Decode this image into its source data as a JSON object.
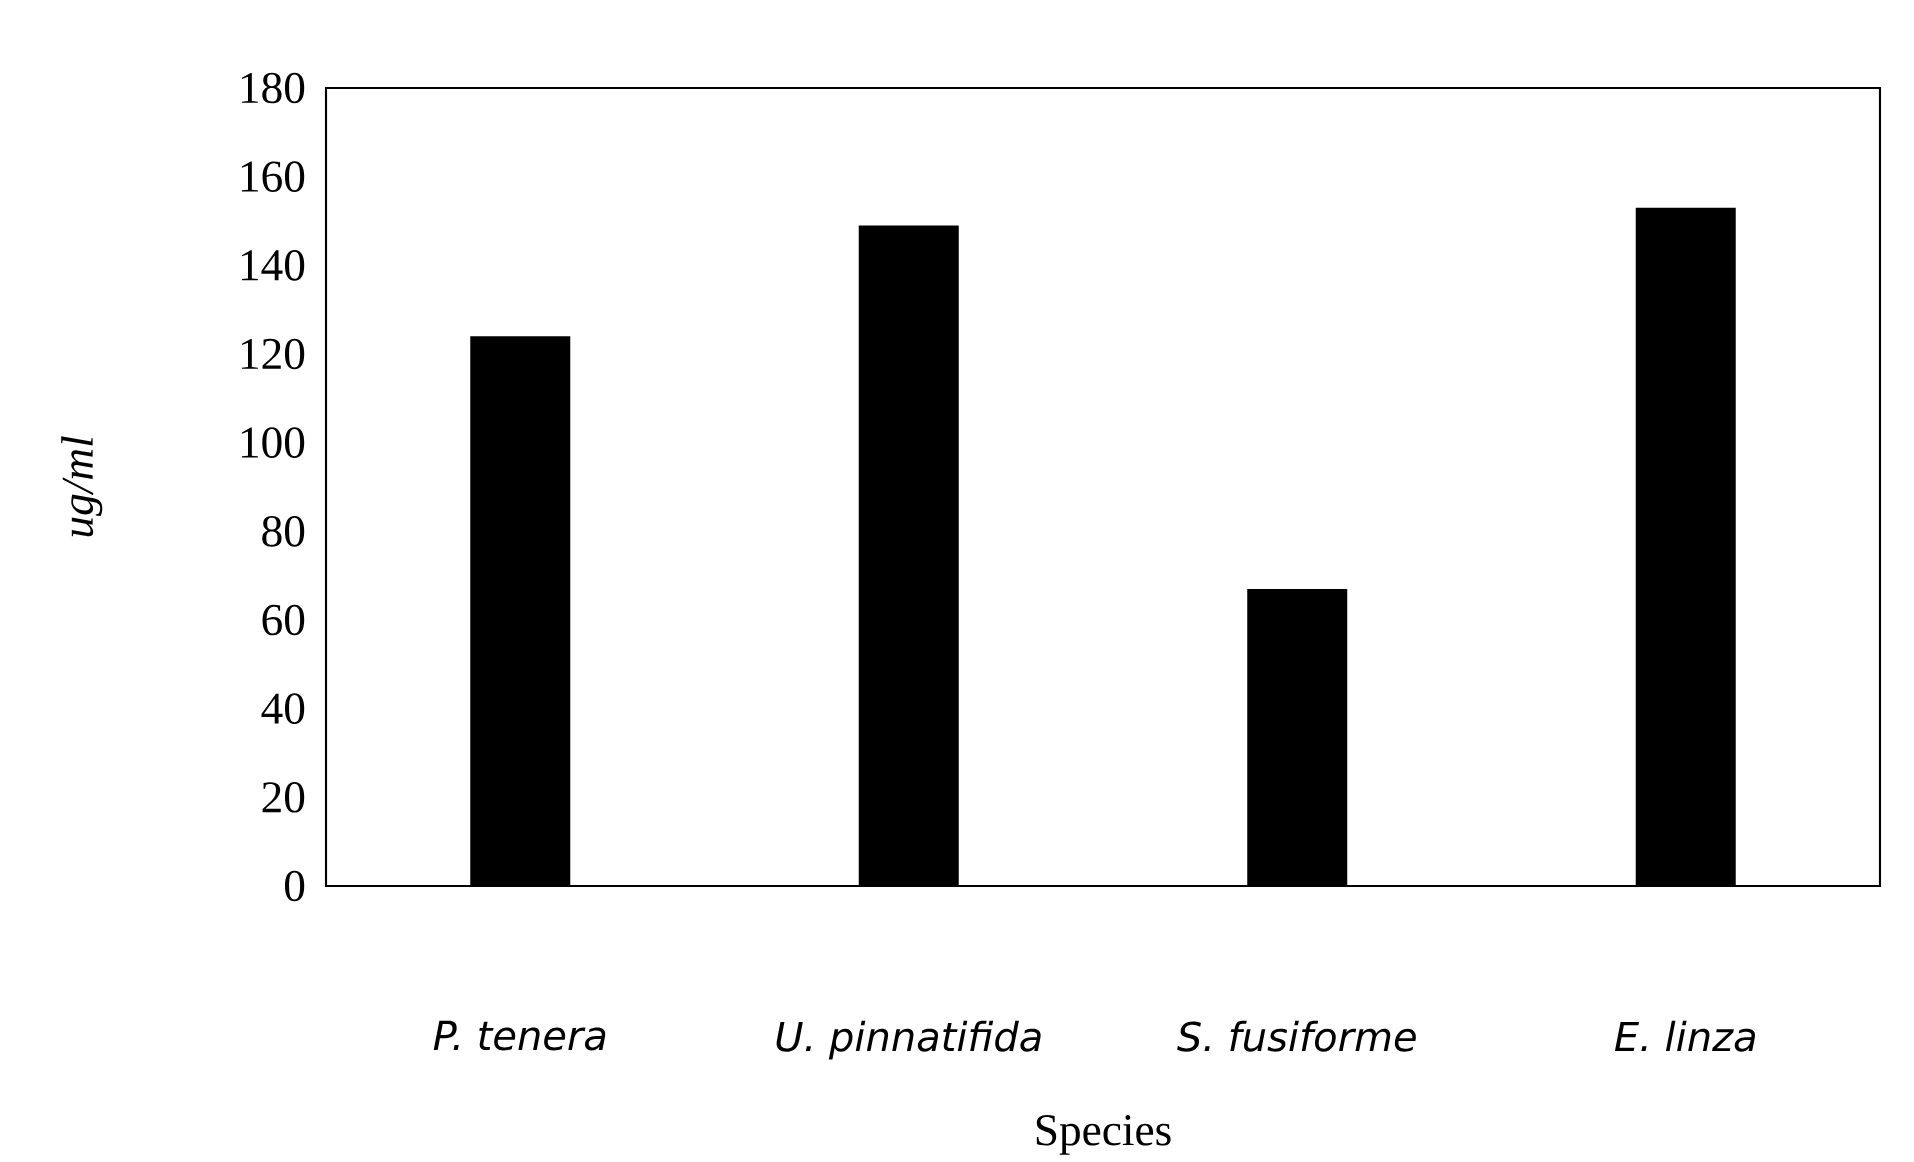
{
  "chart_data": {
    "type": "bar",
    "xlabel": "Species",
    "ylabel": "ug/ml",
    "categories": [
      "P. tenera",
      "U. pinnatifida",
      "S. fusiforme",
      "E. linza"
    ],
    "values": [
      124,
      149,
      67,
      153
    ],
    "color": "#000000",
    "ylim": [
      0,
      180
    ],
    "yticks": [
      0,
      20,
      40,
      60,
      80,
      100,
      120,
      140,
      160,
      180
    ],
    "grid": false
  }
}
